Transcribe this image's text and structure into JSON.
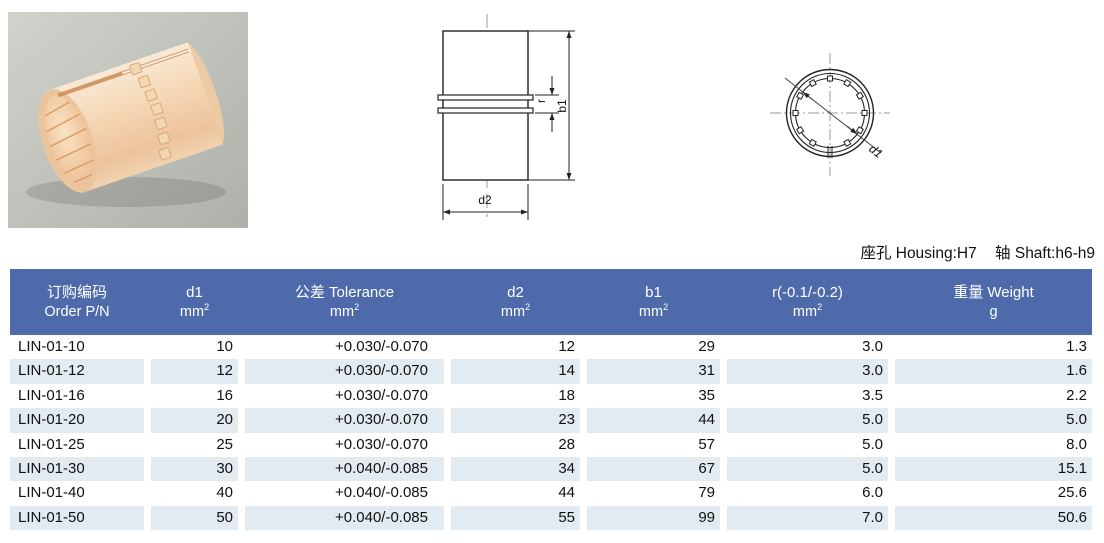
{
  "fit_note": {
    "housing": "座孔 Housing:H7",
    "shaft": "轴 Shaft:h6-h9"
  },
  "drawings": {
    "side_view": {
      "d2_label": "d2",
      "b1_label": "b1",
      "r_label": "r"
    },
    "front_view": {
      "d1_label": "d1"
    }
  },
  "table": {
    "columns": [
      {
        "title": "订购编码",
        "subtitle": "Order P/N"
      },
      {
        "title": "d1",
        "unit": "mm",
        "sup": "2"
      },
      {
        "title": "公差 Tolerance",
        "unit": "mm",
        "sup": "2"
      },
      {
        "title": "d2",
        "unit": "mm",
        "sup": "2"
      },
      {
        "title": "b1",
        "unit": "mm",
        "sup": "2"
      },
      {
        "title": "r(-0.1/-0.2)",
        "unit": "mm",
        "sup": "2"
      },
      {
        "title": "重量 Weight",
        "unit": "g",
        "sup": ""
      }
    ],
    "rows": [
      [
        "LIN-01-10",
        "10",
        "+0.030/-0.070",
        "12",
        "29",
        "3.0",
        "1.3"
      ],
      [
        "LIN-01-12",
        "12",
        "+0.030/-0.070",
        "14",
        "31",
        "3.0",
        "1.6"
      ],
      [
        "LIN-01-16",
        "16",
        "+0.030/-0.070",
        "18",
        "35",
        "3.5",
        "2.2"
      ],
      [
        "LIN-01-20",
        "20",
        "+0.030/-0.070",
        "23",
        "44",
        "5.0",
        "5.0"
      ],
      [
        "LIN-01-25",
        "25",
        "+0.030/-0.070",
        "28",
        "57",
        "5.0",
        "8.0"
      ],
      [
        "LIN-01-30",
        "30",
        "+0.040/-0.085",
        "34",
        "67",
        "5.0",
        "15.1"
      ],
      [
        "LIN-01-40",
        "40",
        "+0.040/-0.085",
        "44",
        "79",
        "6.0",
        "25.6"
      ],
      [
        "LIN-01-50",
        "50",
        "+0.040/-0.085",
        "55",
        "99",
        "7.0",
        "50.6"
      ]
    ]
  },
  "colors": {
    "header_bg": "#4e6aab",
    "alt_row_bg": "#e2ebf1",
    "header_text": "#ffffff",
    "body_text": "#111111"
  }
}
